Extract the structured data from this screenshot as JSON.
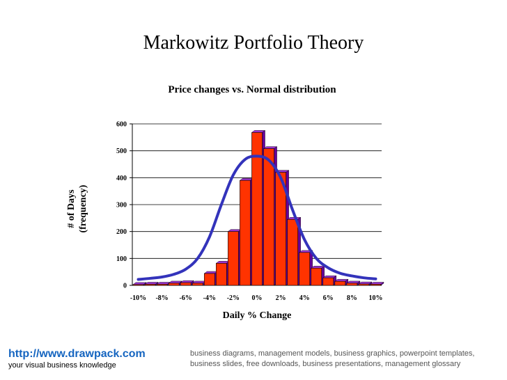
{
  "page": {
    "title": "Markowitz Portfolio Theory"
  },
  "footer": {
    "url": "http://www.drawpack.com",
    "tagline": "your visual business knowledge",
    "description": "business diagrams, management models, business graphics, powerpoint templates, business slides, free downloads, business presentations, management glossary"
  },
  "chart_data": {
    "type": "bar",
    "title": "Price changes vs. Normal distribution",
    "xlabel": "Daily % Change",
    "ylabel": [
      "# of Days",
      "(frequency)"
    ],
    "ylim": [
      0,
      600
    ],
    "yticks": [
      0,
      100,
      200,
      300,
      400,
      500,
      600
    ],
    "xtick_labels": [
      "-10%",
      "-8%",
      "-6%",
      "-4%",
      "-2%",
      "0%",
      "2%",
      "4%",
      "6%",
      "8%",
      "10%"
    ],
    "grid": true,
    "bar_color": "#ff3300",
    "bar_top_color": "#9933cc",
    "curve_color": "#3333bb",
    "series": [
      {
        "type": "bar",
        "values": [
          3,
          4,
          4,
          8,
          10,
          8,
          44,
          82,
          200,
          390,
          568,
          508,
          420,
          245,
          122,
          64,
          28,
          15,
          8,
          5,
          4
        ]
      },
      {
        "type": "line",
        "values": [
          22,
          26,
          31,
          41,
          60,
          100,
          180,
          300,
          410,
          468,
          480,
          465,
          400,
          280,
          170,
          100,
          65,
          45,
          35,
          28,
          24
        ]
      }
    ]
  }
}
